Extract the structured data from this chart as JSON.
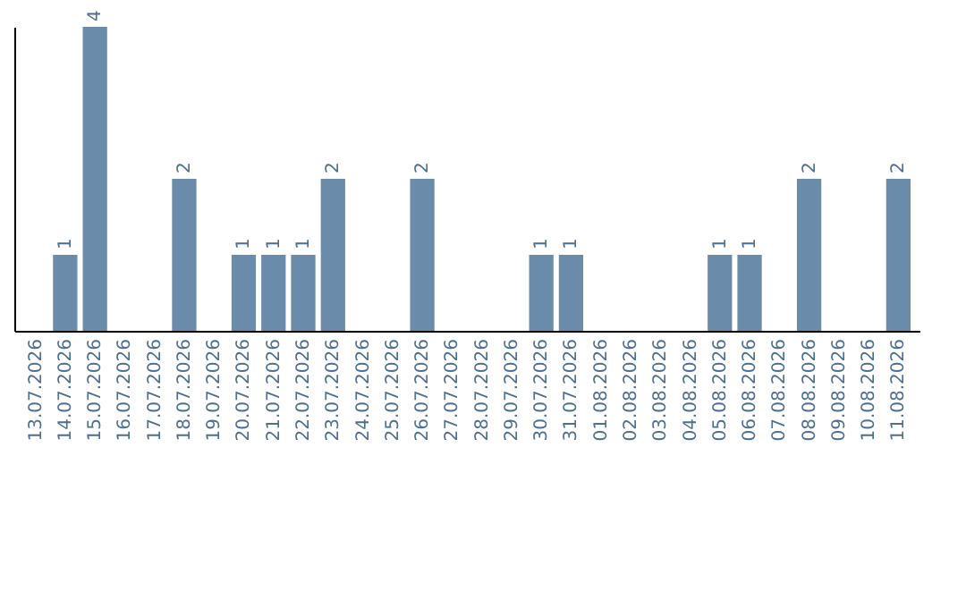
{
  "chart_data": {
    "type": "bar",
    "categories": [
      "13.07.2026",
      "14.07.2026",
      "15.07.2026",
      "16.07.2026",
      "17.07.2026",
      "18.07.2026",
      "19.07.2026",
      "20.07.2026",
      "21.07.2026",
      "22.07.2026",
      "23.07.2026",
      "24.07.2026",
      "25.07.2026",
      "26.07.2026",
      "27.07.2026",
      "28.07.2026",
      "29.07.2026",
      "30.07.2026",
      "31.07.2026",
      "01.08.2026",
      "02.08.2026",
      "03.08.2026",
      "04.08.2026",
      "05.08.2026",
      "06.08.2026",
      "07.08.2026",
      "08.08.2026",
      "09.08.2026",
      "10.08.2026",
      "11.08.2026"
    ],
    "values": [
      0,
      1,
      4,
      0,
      0,
      2,
      0,
      1,
      1,
      1,
      2,
      0,
      0,
      2,
      0,
      0,
      0,
      1,
      1,
      0,
      0,
      0,
      0,
      1,
      1,
      0,
      2,
      0,
      0,
      2
    ],
    "value_labels": [
      null,
      "1",
      "4",
      null,
      null,
      "2",
      null,
      "1",
      "1",
      "1",
      "2",
      null,
      null,
      "2",
      null,
      null,
      null,
      "1",
      "1",
      null,
      null,
      null,
      null,
      "1",
      "1",
      null,
      "2",
      null,
      null,
      "2"
    ],
    "color": "#6a8caa",
    "tick_labels": "x",
    "grid": false
  }
}
